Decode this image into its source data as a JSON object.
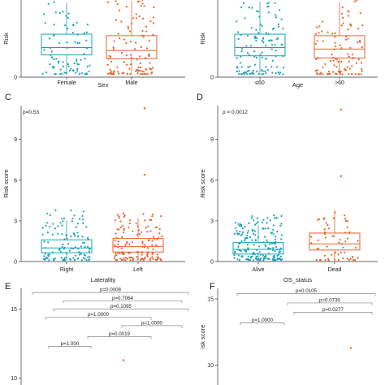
{
  "colors": {
    "teal": "#1aa3b8",
    "orange": "#e8632b",
    "axis": "#333333",
    "bracket": "#888888"
  },
  "chart_data": [
    {
      "panel": "",
      "type": "scatter",
      "subtype": "box-jitter",
      "ylabel": "Risk",
      "xlabel": "Sex",
      "ylim": [
        0,
        4.3
      ],
      "yticks": [
        0,
        3
      ],
      "categories": [
        "Female",
        "Male"
      ],
      "box_stats": [
        {
          "name": "Female",
          "q1": 0.75,
          "median": 1.0,
          "q3": 1.45,
          "color": "teal"
        },
        {
          "name": "Male",
          "q1": 0.62,
          "median": 0.9,
          "q3": 1.4,
          "color": "orange"
        }
      ],
      "points": [
        {
          "category": "Female",
          "n": 110,
          "max": 3.9
        },
        {
          "category": "Male",
          "n": 150,
          "max": 4.1
        }
      ]
    },
    {
      "panel": "",
      "type": "scatter",
      "subtype": "box-jitter",
      "ylabel": "Risk",
      "xlabel": "Age",
      "ylim": [
        0,
        4.3
      ],
      "yticks": [
        0,
        3
      ],
      "categories": [
        "≤60",
        ">60"
      ],
      "box_stats": [
        {
          "name": "≤60",
          "q1": 0.72,
          "median": 1.0,
          "q3": 1.45,
          "color": "teal"
        },
        {
          "name": ">60",
          "q1": 0.65,
          "median": 0.95,
          "q3": 1.4,
          "color": "orange"
        }
      ],
      "points": [
        {
          "category": "≤60",
          "n": 130,
          "max": 3.4
        },
        {
          "category": ">60",
          "n": 130,
          "max": 4.1
        }
      ]
    },
    {
      "panel": "C",
      "type": "scatter",
      "subtype": "box-jitter",
      "annotation": "p=0.53",
      "ylabel": "Risk score",
      "xlabel": "Laterality",
      "ylim": [
        0,
        11.5
      ],
      "yticks": [
        0,
        3,
        6,
        9
      ],
      "categories": [
        "Right",
        "Left"
      ],
      "box_stats": [
        {
          "name": "Right",
          "q1": 0.65,
          "median": 1.0,
          "q3": 1.6,
          "color": "teal"
        },
        {
          "name": "Left",
          "q1": 0.7,
          "median": 1.1,
          "q3": 1.7,
          "color": "orange"
        }
      ],
      "points": [
        {
          "category": "Right",
          "n": 120,
          "max": 3.9
        },
        {
          "category": "Left",
          "n": 140,
          "max": 3.6,
          "outliers": [
            6.4,
            11.3
          ]
        }
      ]
    },
    {
      "panel": "D",
      "type": "scatter",
      "subtype": "box-jitter",
      "annotation": "p = 0.0012",
      "ylabel": "Risk score",
      "xlabel": "OS_status",
      "ylim": [
        0,
        11.5
      ],
      "yticks": [
        0,
        3,
        6,
        9
      ],
      "categories": [
        "Alive",
        "Dead"
      ],
      "box_stats": [
        {
          "name": "Alive",
          "q1": 0.55,
          "median": 0.9,
          "q3": 1.4,
          "color": "teal"
        },
        {
          "name": "Dead",
          "q1": 0.85,
          "median": 1.3,
          "q3": 2.1,
          "color": "orange"
        }
      ],
      "points": [
        {
          "category": "Alive",
          "n": 190,
          "max": 3.5
        },
        {
          "category": "Dead",
          "n": 60,
          "max": 3.8,
          "outliers": [
            6.3,
            11.2
          ]
        }
      ]
    },
    {
      "panel": "E",
      "type": "scatter",
      "subtype": "comparison-brackets",
      "ylabel": "",
      "ylim": [
        9.5,
        16.5
      ],
      "yticks": [
        10,
        15
      ],
      "comparisons": [
        {
          "label": "p=0.0008",
          "y": 16.2
        },
        {
          "label": "p=0.7064",
          "y": 15.6
        },
        {
          "label": "p=0.1095",
          "y": 15.0
        },
        {
          "label": "p=1.0000",
          "y": 14.4
        },
        {
          "label": "p=1.0000",
          "y": 13.8
        },
        {
          "label": "p=0.0019",
          "y": 13.0
        },
        {
          "label": "p=1.000",
          "y": 12.3
        }
      ],
      "points": [
        {
          "category": "group4",
          "y": 11.3,
          "color": "orange"
        }
      ]
    },
    {
      "panel": "F",
      "type": "scatter",
      "subtype": "comparison-brackets",
      "ylabel": "isk score",
      "ylim": [
        8.5,
        15.8
      ],
      "yticks": [
        10,
        15
      ],
      "comparisons": [
        {
          "label": "p=0.0105",
          "y": 15.4
        },
        {
          "label": "p=0.0730",
          "y": 14.7
        },
        {
          "label": "p=0.0277",
          "y": 14.0
        },
        {
          "label": "p=1.0000",
          "y": 13.2
        }
      ],
      "points": [
        {
          "category": "group3",
          "y": 11.3,
          "color": "orange"
        }
      ]
    }
  ]
}
